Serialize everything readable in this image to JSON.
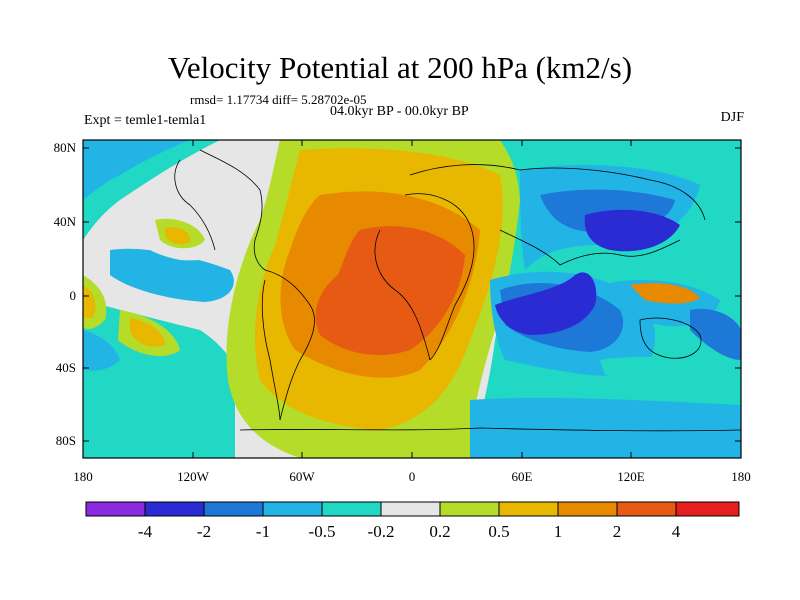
{
  "title": "Velocity Potential at 200 hPa (km2/s)",
  "stats": "rmsd= 1.17734 diff= 5.28702e-05",
  "expt": "Expt = temle1-temla1",
  "period": "04.0kyr BP - 00.0kyr BP",
  "season": "DJF",
  "map": {
    "lat_ticks": [
      "80N",
      "40N",
      "0",
      "40S",
      "80S"
    ],
    "lon_ticks": [
      "180",
      "120W",
      "60W",
      "0",
      "60E",
      "120E",
      "180"
    ]
  },
  "colorbar": {
    "labels": [
      "-4",
      "-2",
      "-1",
      "-0.5",
      "-0.2",
      "0.2",
      "0.5",
      "1",
      "2",
      "4"
    ],
    "colors": [
      "#8a2be2",
      "#2b2bd4",
      "#1e78d8",
      "#23b4e6",
      "#20d8c4",
      "#e6e6e6",
      "#b4dc28",
      "#e8b800",
      "#e88a00",
      "#e65a14",
      "#e61e1e"
    ]
  }
}
